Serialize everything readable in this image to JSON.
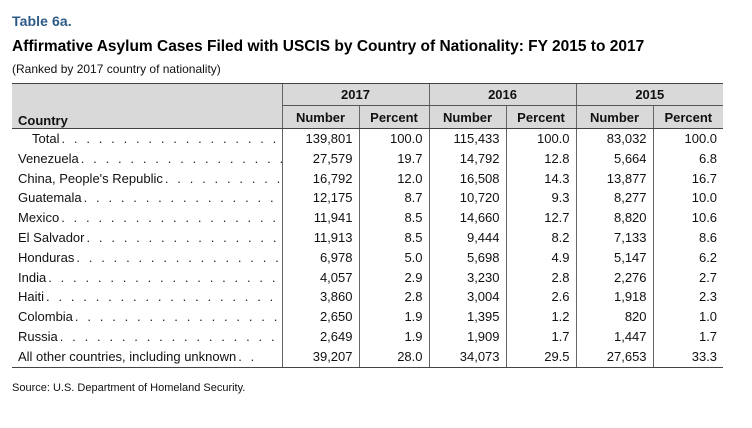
{
  "table_label": "Table 6a.",
  "title": "Affirmative Asylum Cases Filed with USCIS by Country of Nationality: FY 2015 to 2017",
  "subtitle": "(Ranked by 2017 country of nationality)",
  "header": {
    "country": "Country",
    "years": [
      "2017",
      "2016",
      "2015"
    ],
    "number": "Number",
    "percent": "Percent"
  },
  "rows": [
    {
      "country": "Total",
      "leader": ". . . . . . . . . . . . . . . . . . . . . . . . .",
      "n2017": "139,801",
      "p2017": "100.0",
      "n2016": "115,433",
      "p2016": "100.0",
      "n2015": "83,032",
      "p2015": "100.0"
    },
    {
      "country": "Venezuela",
      "leader": ". . . . . . . . . . . . . . . . . . . . . .",
      "n2017": "27,579",
      "p2017": "19.7",
      "n2016": "14,792",
      "p2016": "12.8",
      "n2015": "5,664",
      "p2015": "6.8"
    },
    {
      "country": "China, People's Republic",
      "leader": ". . . . . . . . . . .",
      "n2017": "16,792",
      "p2017": "12.0",
      "n2016": "16,508",
      "p2016": "14.3",
      "n2015": "13,877",
      "p2015": "16.7"
    },
    {
      "country": "Guatemala",
      "leader": ". . . . . . . . . . . . . . . . . . . . . .",
      "n2017": "12,175",
      "p2017": "8.7",
      "n2016": "10,720",
      "p2016": "9.3",
      "n2015": "8,277",
      "p2015": "10.0"
    },
    {
      "country": "Mexico",
      "leader": ". . . . . . . . . . . . . . . . . . . . . . . .",
      "n2017": "11,941",
      "p2017": "8.5",
      "n2016": "14,660",
      "p2016": "12.7",
      "n2015": "8,820",
      "p2015": "10.6"
    },
    {
      "country": "El Salvador",
      "leader": ". . . . . . . . . . . . . . . . . . . . .",
      "n2017": "11,913",
      "p2017": "8.5",
      "n2016": "9,444",
      "p2016": "8.2",
      "n2015": "7,133",
      "p2015": "8.6"
    },
    {
      "country": "Honduras",
      "leader": ". . . . . . . . . . . . . . . . . . . . . . .",
      "n2017": "6,978",
      "p2017": "5.0",
      "n2016": "5,698",
      "p2016": "4.9",
      "n2015": "5,147",
      "p2015": "6.2"
    },
    {
      "country": "India",
      "leader": ". . . . . . . . . . . . . . . . . . . . . . . . .",
      "n2017": "4,057",
      "p2017": "2.9",
      "n2016": "3,230",
      "p2016": "2.8",
      "n2015": "2,276",
      "p2015": "2.7"
    },
    {
      "country": "Haiti",
      "leader": ". . . . . . . . . . . . . . . . . . . . . . . . .",
      "n2017": "3,860",
      "p2017": "2.8",
      "n2016": "3,004",
      "p2016": "2.6",
      "n2015": "1,918",
      "p2015": "2.3"
    },
    {
      "country": "Colombia",
      "leader": ". . . . . . . . . . . . . . . . . . . . . . .",
      "n2017": "2,650",
      "p2017": "1.9",
      "n2016": "1,395",
      "p2016": "1.2",
      "n2015": "820",
      "p2015": "1.0"
    },
    {
      "country": "Russia",
      "leader": ". . . . . . . . . . . . . . . . . . . . . . . .",
      "n2017": "2,649",
      "p2017": "1.9",
      "n2016": "1,909",
      "p2016": "1.7",
      "n2015": "1,447",
      "p2015": "1.7"
    },
    {
      "country": "All other countries, including unknown",
      "leader": ". .",
      "n2017": "39,207",
      "p2017": "28.0",
      "n2016": "34,073",
      "p2016": "29.5",
      "n2015": "27,653",
      "p2015": "33.3"
    }
  ],
  "source": "Source: U.S. Department of Homeland Security."
}
